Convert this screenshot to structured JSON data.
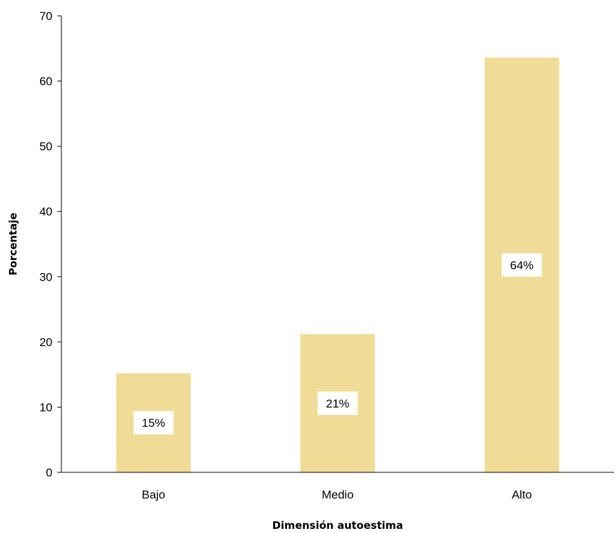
{
  "chart_data": {
    "type": "bar",
    "title": "",
    "xlabel": "Dimensión autoestima",
    "ylabel": "Porcentaje",
    "ylim": [
      0,
      70
    ],
    "yticks": [
      0,
      10,
      20,
      30,
      40,
      50,
      60,
      70
    ],
    "categories": [
      "Bajo",
      "Medio",
      "Alto"
    ],
    "values": [
      15.2,
      21.2,
      63.6
    ],
    "data_labels": [
      "15%",
      "21%",
      "64%"
    ],
    "bar_color": "#f0dc96",
    "grid": false,
    "legend": "none"
  }
}
